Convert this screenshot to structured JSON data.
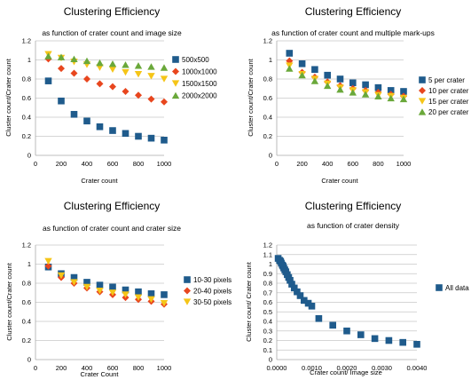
{
  "chart_data": [
    {
      "type": "scatter",
      "title": "Clustering Efficiency",
      "subtitle": "as function of crater count and image size",
      "xlabel": "Crater count",
      "ylabel": "Cluster count/Crater count",
      "xlim": [
        0,
        1000
      ],
      "ylim": [
        0,
        1.2
      ],
      "xticks": [
        "0",
        "200",
        "400",
        "600",
        "800",
        "1000"
      ],
      "yticks": [
        "0",
        "0.2",
        "0.4",
        "0.6",
        "0.8",
        "1",
        "1.2"
      ],
      "grid": "horizontal",
      "legend_position": "right",
      "series": [
        {
          "name": "500x500",
          "color": "#1f5b8c",
          "marker": "square",
          "x": [
            100,
            200,
            300,
            400,
            500,
            600,
            700,
            800,
            900,
            1000
          ],
          "y": [
            0.78,
            0.57,
            0.43,
            0.36,
            0.3,
            0.26,
            0.23,
            0.2,
            0.18,
            0.16
          ]
        },
        {
          "name": "1000x1000",
          "color": "#e8461e",
          "marker": "diamond",
          "x": [
            100,
            200,
            300,
            400,
            500,
            600,
            700,
            800,
            900,
            1000
          ],
          "y": [
            1.01,
            0.91,
            0.86,
            0.8,
            0.75,
            0.72,
            0.67,
            0.63,
            0.59,
            0.56
          ]
        },
        {
          "name": "1500x1500",
          "color": "#f5c518",
          "marker": "triangle-down",
          "x": [
            100,
            200,
            300,
            400,
            500,
            600,
            700,
            800,
            900,
            1000
          ],
          "y": [
            1.06,
            1.02,
            0.98,
            0.95,
            0.92,
            0.9,
            0.87,
            0.85,
            0.83,
            0.8
          ]
        },
        {
          "name": "2000x2000",
          "color": "#6aa83a",
          "marker": "triangle-up",
          "x": [
            100,
            200,
            300,
            400,
            500,
            600,
            700,
            800,
            900,
            1000
          ],
          "y": [
            1.04,
            1.03,
            1.01,
            0.99,
            0.97,
            0.96,
            0.95,
            0.94,
            0.93,
            0.92
          ]
        }
      ]
    },
    {
      "type": "scatter",
      "title": "Clustering Efficiency",
      "subtitle": "as function of crater count and multiple mark-ups",
      "xlabel": "Crater count",
      "ylabel": "Cluster count/Crater count",
      "xlim": [
        0,
        1000
      ],
      "ylim": [
        0,
        1.2
      ],
      "xticks": [
        "0",
        "200",
        "400",
        "600",
        "800",
        "1000"
      ],
      "yticks": [
        "0",
        "0.2",
        "0.4",
        "0.6",
        "0.8",
        "1",
        "1.2"
      ],
      "grid": "horizontal",
      "legend_position": "right",
      "series": [
        {
          "name": "5 per crater",
          "color": "#1f5b8c",
          "marker": "square",
          "x": [
            100,
            200,
            300,
            400,
            500,
            600,
            700,
            800,
            900,
            1000
          ],
          "y": [
            1.07,
            0.96,
            0.9,
            0.84,
            0.8,
            0.76,
            0.74,
            0.71,
            0.68,
            0.67
          ]
        },
        {
          "name": "10 per crater",
          "color": "#e8461e",
          "marker": "diamond",
          "x": [
            100,
            200,
            300,
            400,
            500,
            600,
            700,
            800,
            900,
            1000
          ],
          "y": [
            0.99,
            0.87,
            0.82,
            0.77,
            0.73,
            0.7,
            0.68,
            0.66,
            0.64,
            0.62
          ]
        },
        {
          "name": "15 per crater",
          "color": "#f5c518",
          "marker": "triangle-down",
          "x": [
            100,
            200,
            300,
            400,
            500,
            600,
            700,
            800,
            900,
            1000
          ],
          "y": [
            0.94,
            0.85,
            0.8,
            0.75,
            0.71,
            0.68,
            0.66,
            0.63,
            0.62,
            0.6
          ]
        },
        {
          "name": "20 per crater",
          "color": "#6aa83a",
          "marker": "triangle-up",
          "x": [
            100,
            200,
            300,
            400,
            500,
            600,
            700,
            800,
            900,
            1000
          ],
          "y": [
            0.91,
            0.84,
            0.78,
            0.73,
            0.69,
            0.66,
            0.64,
            0.62,
            0.6,
            0.59
          ]
        }
      ]
    },
    {
      "type": "scatter",
      "title": "Clustering Efficiency",
      "subtitle": "as function of crater count and crater size",
      "xlabel": "Crater Count",
      "ylabel": "Cluster count/Crater count",
      "xlim": [
        0,
        1000
      ],
      "ylim": [
        0,
        1.2
      ],
      "xticks": [
        "0",
        "200",
        "400",
        "600",
        "800",
        "1000"
      ],
      "yticks": [
        "0",
        "0.2",
        "0.4",
        "0.6",
        "0.8",
        "1",
        "1.2"
      ],
      "grid": "horizontal",
      "legend_position": "right",
      "series": [
        {
          "name": "10-30 pixels",
          "color": "#1f5b8c",
          "marker": "square",
          "x": [
            100,
            200,
            300,
            400,
            500,
            600,
            700,
            800,
            900,
            1000
          ],
          "y": [
            0.97,
            0.9,
            0.86,
            0.81,
            0.78,
            0.76,
            0.73,
            0.71,
            0.69,
            0.68
          ]
        },
        {
          "name": "20-40 pixels",
          "color": "#e8461e",
          "marker": "diamond",
          "x": [
            100,
            200,
            300,
            400,
            500,
            600,
            700,
            800,
            900,
            1000
          ],
          "y": [
            0.98,
            0.86,
            0.8,
            0.75,
            0.71,
            0.68,
            0.65,
            0.63,
            0.61,
            0.58
          ]
        },
        {
          "name": "30-50 pixels",
          "color": "#f5c518",
          "marker": "triangle-down",
          "x": [
            100,
            200,
            300,
            400,
            500,
            600,
            700,
            800,
            900,
            1000
          ],
          "y": [
            1.03,
            0.88,
            0.81,
            0.76,
            0.72,
            0.7,
            0.68,
            0.65,
            0.63,
            0.59
          ]
        }
      ]
    },
    {
      "type": "scatter",
      "title": "Clustering Efficiency",
      "subtitle": "as function of crater density",
      "xlabel": "Crater count/ Image size",
      "ylabel": "Cluster count/ Crater count",
      "xlim": [
        0,
        0.004
      ],
      "ylim": [
        0,
        1.2
      ],
      "xticks": [
        "0.0000",
        "0.0010",
        "0.0020",
        "0.0030",
        "0.0040"
      ],
      "yticks": [
        "0",
        "0.1",
        "0.2",
        "0.3",
        "0.4",
        "0.5",
        "0.6",
        "0.7",
        "0.8",
        "0.9",
        "1",
        "1.1",
        "1.2"
      ],
      "grid": "horizontal",
      "legend_position": "right",
      "series": [
        {
          "name": "All data",
          "color": "#1f5b8c",
          "marker": "square",
          "x": [
            4e-05,
            8e-05,
            0.00011,
            0.00013,
            0.00016,
            0.00018,
            0.0002,
            0.00023,
            0.00026,
            0.0003,
            0.00034,
            0.00038,
            0.00043,
            0.0005,
            0.00058,
            0.00067,
            0.00078,
            0.0009,
            0.001,
            0.0012,
            0.0016,
            0.002,
            0.0024,
            0.0028,
            0.0032,
            0.0036,
            0.004
          ],
          "y": [
            1.06,
            1.04,
            1.03,
            1.01,
            0.99,
            0.98,
            0.96,
            0.94,
            0.92,
            0.89,
            0.86,
            0.83,
            0.79,
            0.75,
            0.71,
            0.67,
            0.62,
            0.59,
            0.56,
            0.43,
            0.36,
            0.3,
            0.26,
            0.22,
            0.2,
            0.18,
            0.16
          ]
        }
      ]
    }
  ]
}
